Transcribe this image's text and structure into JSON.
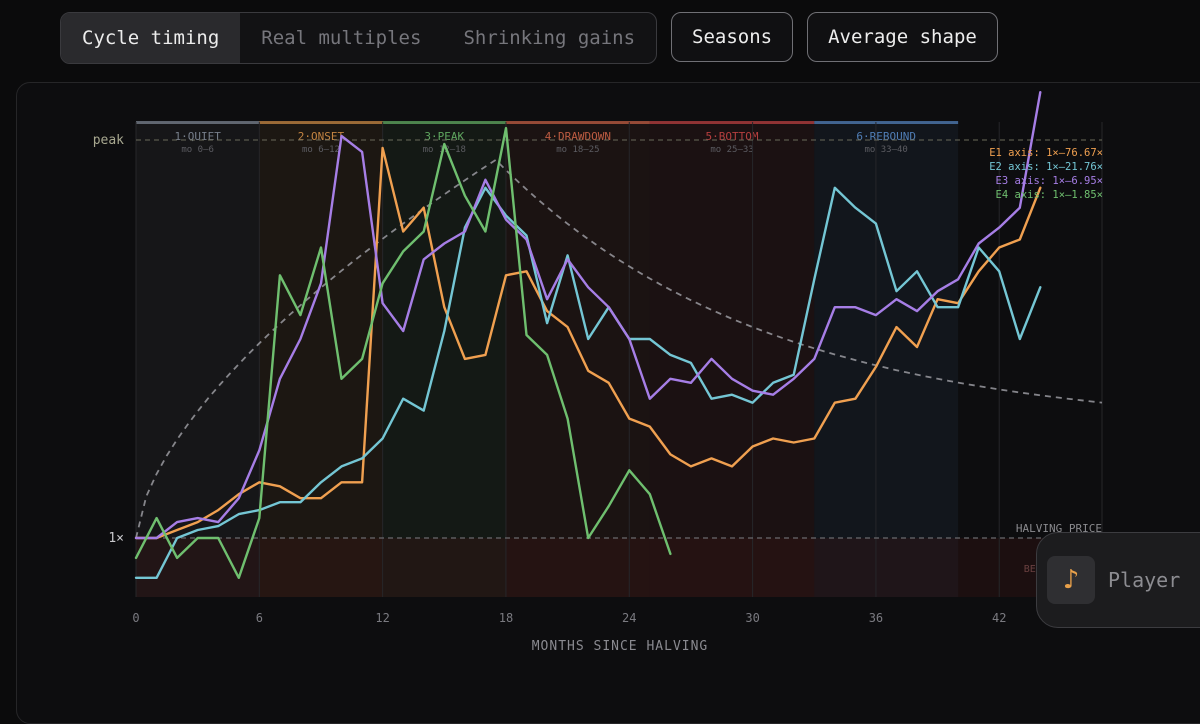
{
  "toolbar": {
    "tabs": [
      {
        "label": "Cycle timing",
        "active": true
      },
      {
        "label": "Real multiples",
        "active": false
      },
      {
        "label": "Shrinking gains",
        "active": false
      }
    ],
    "seasons_label": "Seasons",
    "average_shape_label": "Average shape"
  },
  "player": {
    "label": "Player",
    "icon": "music-note-icon"
  },
  "chart_data": {
    "type": "line",
    "xlabel": "MONTHS SINCE HALVING",
    "xlim": [
      0,
      47
    ],
    "xticks": [
      0,
      6,
      12,
      18,
      24,
      30,
      36,
      42,
      47
    ],
    "y_tick_labels": {
      "peak": "peak",
      "base": "1×"
    },
    "reference_labels": {
      "halving": "HALVING PRICE",
      "below": "BELOW HALVING"
    },
    "seasons": [
      {
        "name": "1·QUIET",
        "range_label": "mo 0–6",
        "start": 0,
        "end": 6,
        "color": "#8892a0"
      },
      {
        "name": "2·ONSET",
        "range_label": "mo 6–12",
        "start": 6,
        "end": 12,
        "color": "#e0964a"
      },
      {
        "name": "3·PEAK",
        "range_label": "mo 12–18",
        "start": 12,
        "end": 18,
        "color": "#6cbf6c"
      },
      {
        "name": "4·DRAWDOWN",
        "range_label": "mo 18–25",
        "start": 18,
        "end": 25,
        "color": "#d9684a"
      },
      {
        "name": "5·BOTTOM",
        "range_label": "mo 25–33",
        "start": 25,
        "end": 33,
        "color": "#d04646"
      },
      {
        "name": "6·REBOUND",
        "range_label": "mo 33–40",
        "start": 33,
        "end": 40,
        "color": "#5a8fd0"
      }
    ],
    "series": [
      {
        "name": "E1",
        "color": "#f0a050",
        "axis_label": "E1 axis: 1×–76.67×",
        "values": [
          0,
          0,
          0.02,
          0.04,
          0.07,
          0.11,
          0.14,
          0.13,
          0.1,
          0.1,
          0.14,
          0.14,
          0.98,
          0.77,
          0.83,
          0.58,
          0.45,
          0.46,
          0.66,
          0.67,
          0.57,
          0.53,
          0.42,
          0.39,
          0.3,
          0.28,
          0.21,
          0.18,
          0.2,
          0.18,
          0.23,
          0.25,
          0.24,
          0.25,
          0.34,
          0.35,
          0.43,
          0.53,
          0.48,
          0.6,
          0.59,
          0.67,
          0.73,
          0.75,
          0.88
        ]
      },
      {
        "name": "E2",
        "color": "#74c6d4",
        "axis_label": "E2 axis: 1×–21.76×",
        "values": [
          -0.1,
          -0.1,
          0.0,
          0.02,
          0.03,
          0.06,
          0.07,
          0.09,
          0.09,
          0.14,
          0.18,
          0.2,
          0.25,
          0.35,
          0.32,
          0.52,
          0.78,
          0.88,
          0.81,
          0.76,
          0.54,
          0.71,
          0.5,
          0.58,
          0.5,
          0.5,
          0.46,
          0.44,
          0.35,
          0.36,
          0.34,
          0.39,
          0.41,
          0.65,
          0.88,
          0.83,
          0.79,
          0.62,
          0.67,
          0.58,
          0.58,
          0.73,
          0.67,
          0.5,
          0.63
        ]
      },
      {
        "name": "E3",
        "color": "#a67ee6",
        "axis_label": "E3 axis: 1×–6.95×",
        "values": [
          0,
          0,
          0.04,
          0.05,
          0.04,
          0.1,
          0.22,
          0.4,
          0.5,
          0.64,
          1.01,
          0.97,
          0.59,
          0.52,
          0.7,
          0.74,
          0.77,
          0.9,
          0.8,
          0.75,
          0.6,
          0.7,
          0.63,
          0.58,
          0.5,
          0.35,
          0.4,
          0.39,
          0.45,
          0.4,
          0.37,
          0.36,
          0.4,
          0.45,
          0.58,
          0.58,
          0.56,
          0.6,
          0.57,
          0.62,
          0.65,
          0.74,
          0.78,
          0.83,
          1.12
        ]
      },
      {
        "name": "E4",
        "color": "#6fbf6f",
        "axis_label": "E4 axis: 1×–1.85×",
        "values": [
          -0.05,
          0.05,
          -0.05,
          0.0,
          0.0,
          -0.1,
          0.05,
          0.66,
          0.56,
          0.73,
          0.4,
          0.45,
          0.64,
          0.72,
          0.77,
          0.99,
          0.86,
          0.77,
          1.03,
          0.51,
          0.46,
          0.3,
          0.0,
          0.08,
          0.17,
          0.11,
          -0.04
        ]
      }
    ],
    "average_shape": {
      "color": "#9a9aa0",
      "style": "dashed"
    },
    "legend_position": "top-right",
    "grid": false
  }
}
